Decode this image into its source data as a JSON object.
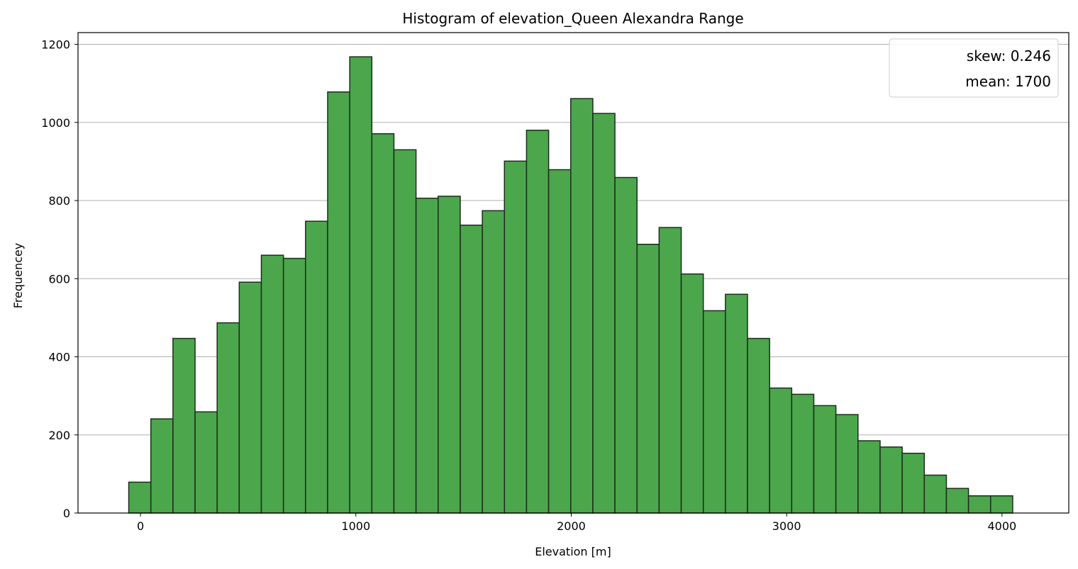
{
  "chart_data": {
    "type": "bar",
    "title": "Histogram of elevation_Queen Alexandra Range",
    "xlabel": "Elevation [m]",
    "ylabel": "Frequencey",
    "xlim": [
      -290,
      4310
    ],
    "ylim": [
      0,
      1230
    ],
    "xticks": [
      0,
      1000,
      2000,
      3000,
      4000
    ],
    "yticks": [
      0,
      200,
      400,
      600,
      800,
      1000,
      1200
    ],
    "grid": "y-axis",
    "legend_placement": "top-right",
    "legend": [
      "skew: 0.246",
      "mean: 1700"
    ],
    "bar_color": "#4ca64c",
    "edge_color": "#1a2e1a",
    "bin_edges": [
      -54.4,
      48.2,
      150.8,
      253.4,
      356.0,
      458.6,
      561.2,
      663.8,
      766.4,
      869.0,
      971.6,
      1074.2,
      1176.8,
      1279.4,
      1382.0,
      1484.6,
      1587.2,
      1689.8,
      1792.4,
      1895.0,
      1997.6,
      2100.2,
      2202.8,
      2305.4,
      2408.0,
      2510.6,
      2613.2,
      2715.8,
      2818.4,
      2921.0,
      3023.6,
      3126.2,
      3228.8,
      3331.4,
      3434.0,
      3536.6,
      3639.2,
      3741.8,
      3844.4,
      3947.0,
      4049.6
    ],
    "values": [
      79,
      241,
      447,
      259,
      487,
      591,
      660,
      652,
      747,
      1078,
      1168,
      971,
      930,
      806,
      811,
      737,
      774,
      901,
      980,
      879,
      1061,
      1023,
      859,
      688,
      731,
      612,
      518,
      560,
      447,
      320,
      304,
      275,
      252,
      185,
      169,
      153,
      97,
      63,
      44,
      44
    ]
  }
}
